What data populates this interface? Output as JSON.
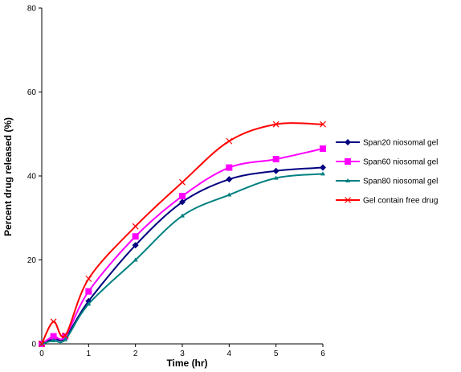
{
  "chart_data": {
    "type": "line",
    "xlabel": "Time (hr)",
    "ylabel": "Percent drug released (%)",
    "xlim": [
      0,
      6
    ],
    "ylim": [
      0,
      80
    ],
    "xticks": [
      0,
      1,
      2,
      3,
      4,
      5,
      6
    ],
    "yticks": [
      0,
      20,
      40,
      60,
      80
    ],
    "grid": false,
    "legend_position": "right",
    "series": [
      {
        "name": "Span20 niosomal gel",
        "color": "#000080",
        "marker": "diamond",
        "x": [
          0,
          0.25,
          0.5,
          1,
          2,
          3,
          4,
          5,
          6
        ],
        "y": [
          0,
          1.2,
          1.5,
          10.2,
          23.5,
          33.8,
          39.2,
          41.2,
          42.0
        ]
      },
      {
        "name": "Span60 niosomal gel",
        "color": "#ff00ff",
        "marker": "square",
        "x": [
          0,
          0.25,
          0.5,
          1,
          2,
          3,
          4,
          5,
          6
        ],
        "y": [
          0,
          1.8,
          1.8,
          12.5,
          25.6,
          35.2,
          42.0,
          44.0,
          46.5
        ]
      },
      {
        "name": "Span80 niosomal gel",
        "color": "#008080",
        "marker": "triangle",
        "x": [
          0,
          0.25,
          0.5,
          1,
          2,
          3,
          4,
          5,
          6
        ],
        "y": [
          0,
          0.8,
          1.0,
          9.5,
          20.0,
          30.5,
          35.5,
          39.5,
          40.5
        ]
      },
      {
        "name": "Gel contain free drug",
        "color": "#ff0000",
        "marker": "x",
        "x": [
          0,
          0.25,
          0.5,
          1,
          2,
          3,
          4,
          5,
          6
        ],
        "y": [
          0,
          5.3,
          2.0,
          15.5,
          28.0,
          38.5,
          48.3,
          52.3,
          52.3
        ]
      }
    ]
  }
}
